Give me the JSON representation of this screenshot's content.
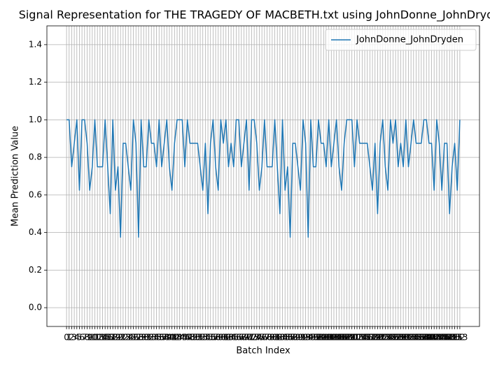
{
  "chart_data": {
    "type": "line",
    "title": "Signal Representation for THE TRAGEDY OF MACBETH.txt using JohnDonne_JohnDryden",
    "xlabel": "Batch Index",
    "ylabel": "Mean Prediction Value",
    "x": [
      0,
      1,
      2,
      3,
      4,
      5,
      6,
      7,
      8,
      9,
      10,
      11,
      12,
      13,
      14,
      15,
      16,
      17,
      18,
      19,
      20,
      21,
      22,
      23,
      24,
      25,
      26,
      27,
      28,
      29,
      30,
      31,
      32,
      33,
      34,
      35,
      36,
      37,
      38,
      39,
      40,
      41,
      42,
      43,
      44,
      45,
      46,
      47,
      48,
      49,
      50,
      51,
      52,
      53,
      54,
      55,
      56,
      57,
      58,
      59,
      60,
      61,
      62,
      63,
      64,
      65,
      66,
      67,
      68,
      69,
      70,
      71,
      72,
      73,
      74,
      75,
      76,
      77,
      78,
      79,
      80,
      81,
      82,
      83,
      84,
      85,
      86,
      87,
      88,
      89,
      90,
      91,
      92,
      93,
      94,
      95,
      96,
      97,
      98,
      99,
      100,
      101,
      102,
      103,
      104,
      105,
      106,
      107,
      108,
      109,
      110,
      111,
      112,
      113,
      114,
      115,
      116,
      117,
      118,
      119,
      120,
      121,
      122,
      123,
      124,
      125,
      126,
      127,
      128,
      129,
      130,
      131,
      132,
      133,
      134,
      135,
      136,
      137,
      138,
      139,
      140,
      141,
      142,
      143,
      144,
      145,
      146,
      147,
      148,
      149,
      150,
      151,
      152,
      153
    ],
    "series": [
      {
        "name": "JohnDonne_JohnDryden",
        "color": "#1f77b4",
        "values": [
          1.0,
          1.0,
          0.75,
          0.875,
          1.0,
          0.625,
          1.0,
          1.0,
          0.875,
          0.625,
          0.75,
          1.0,
          0.75,
          0.75,
          0.75,
          1.0,
          0.75,
          0.5,
          1.0,
          0.625,
          0.75,
          0.375,
          0.875,
          0.875,
          0.75,
          0.625,
          1.0,
          0.875,
          0.375,
          1.0,
          0.75,
          0.75,
          1.0,
          0.875,
          0.875,
          0.75,
          1.0,
          0.75,
          0.875,
          1.0,
          0.75,
          0.625,
          0.875,
          1.0,
          1.0,
          1.0,
          0.75,
          1.0,
          0.875,
          0.875,
          0.875,
          0.875,
          0.75,
          0.625,
          0.875,
          0.5,
          0.875,
          1.0,
          0.75,
          0.625,
          1.0,
          0.875,
          1.0,
          0.75,
          0.875,
          0.75,
          1.0,
          1.0,
          0.75,
          0.875,
          1.0,
          0.625,
          1.0,
          1.0,
          0.875,
          0.625,
          0.75,
          1.0,
          0.75,
          0.75,
          0.75,
          1.0,
          0.75,
          0.5,
          1.0,
          0.625,
          0.75,
          0.375,
          0.875,
          0.875,
          0.75,
          0.625,
          1.0,
          0.875,
          0.375,
          1.0,
          0.75,
          0.75,
          1.0,
          0.875,
          0.875,
          0.75,
          1.0,
          0.75,
          0.875,
          1.0,
          0.75,
          0.625,
          0.875,
          1.0,
          1.0,
          1.0,
          0.75,
          1.0,
          0.875,
          0.875,
          0.875,
          0.875,
          0.75,
          0.625,
          0.875,
          0.5,
          0.875,
          1.0,
          0.75,
          0.625,
          1.0,
          0.875,
          1.0,
          0.75,
          0.875,
          0.75,
          1.0,
          0.75,
          0.875,
          1.0,
          0.875,
          0.875,
          0.875,
          1.0,
          1.0,
          0.875,
          0.875,
          0.625,
          1.0,
          0.875,
          0.625,
          0.875,
          0.875,
          0.5,
          0.75,
          0.875,
          0.625,
          1.0
        ]
      }
    ],
    "xlim": [
      -7.65,
      160.65
    ],
    "xticks": [
      0,
      1,
      2,
      3,
      4,
      5,
      6,
      7,
      8,
      9,
      10,
      11,
      12,
      13,
      14,
      15,
      16,
      17,
      18,
      19,
      20,
      21,
      22,
      23,
      24,
      25,
      26,
      27,
      28,
      29,
      30,
      31,
      32,
      33,
      34,
      35,
      36,
      37,
      38,
      39,
      40,
      41,
      42,
      43,
      44,
      45,
      46,
      47,
      48,
      49,
      50,
      51,
      52,
      53,
      54,
      55,
      56,
      57,
      58,
      59,
      60,
      61,
      62,
      63,
      64,
      65,
      66,
      67,
      68,
      69,
      70,
      71,
      72,
      73,
      74,
      75,
      76,
      77,
      78,
      79,
      80,
      81,
      82,
      83,
      84,
      85,
      86,
      87,
      88,
      89,
      90,
      91,
      92,
      93,
      94,
      95,
      96,
      97,
      98,
      99,
      100,
      101,
      102,
      103,
      104,
      105,
      106,
      107,
      108,
      109,
      110,
      111,
      112,
      113,
      114,
      115,
      116,
      117,
      118,
      119,
      120,
      121,
      122,
      123,
      124,
      125,
      126,
      127,
      128,
      129,
      130,
      131,
      132,
      133,
      134,
      135,
      136,
      137,
      138,
      139,
      140,
      141,
      142,
      143,
      144,
      145,
      146,
      147,
      148,
      149,
      150,
      151,
      152,
      153
    ],
    "ylim": [
      -0.1,
      1.5
    ],
    "yticks": [
      {
        "value": 0,
        "label": "0.0"
      },
      {
        "value": 0.2,
        "label": "0.2"
      },
      {
        "value": 0.4,
        "label": "0.4"
      },
      {
        "value": 0.6,
        "label": "0.6"
      },
      {
        "value": 0.8,
        "label": "0.8"
      },
      {
        "value": 1,
        "label": "1.0"
      },
      {
        "value": 1.2,
        "label": "1.2"
      },
      {
        "value": 1.4,
        "label": "1.4"
      }
    ],
    "grid": true,
    "legend": "upper right"
  }
}
